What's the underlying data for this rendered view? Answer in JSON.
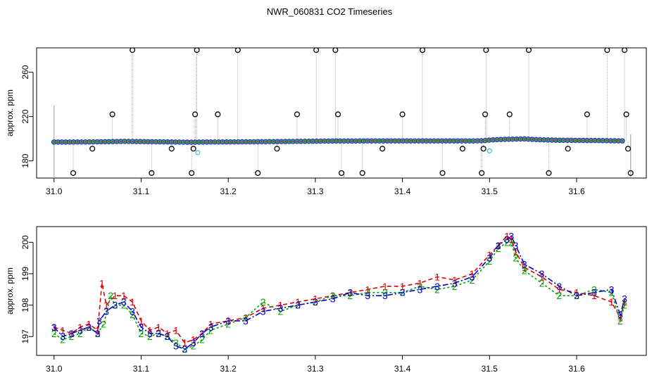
{
  "title": "NWR_060831  CO2 Timeseries",
  "chart_data": [
    {
      "type": "scatter",
      "ylabel": "approx. ppm",
      "xlim": [
        30.98,
        31.68
      ],
      "ylim": [
        164.5,
        282
      ],
      "x_ticks": [
        31.0,
        31.1,
        31.2,
        31.3,
        31.4,
        31.5,
        31.6
      ],
      "x_tick_labels": [
        "31.0",
        "31.1",
        "31.2",
        "31.3",
        "31.4",
        "31.5",
        "31.6"
      ],
      "y_ticks": [
        180,
        220,
        260
      ],
      "y_tick_labels": [
        "180",
        "220",
        "260"
      ],
      "baseline": {
        "x": [
          31.0,
          31.02,
          31.04,
          31.06,
          31.08,
          31.1,
          31.12,
          31.14,
          31.158,
          31.17,
          31.2,
          31.24,
          31.28,
          31.32,
          31.325,
          31.332,
          31.36,
          31.4,
          31.44,
          31.48,
          31.494,
          31.5,
          31.52,
          31.54,
          31.56,
          31.58,
          31.62,
          31.655
        ],
        "y": [
          197,
          197,
          197.1,
          197.3,
          197.6,
          197.4,
          197.2,
          197,
          196.8,
          197,
          197.1,
          197.3,
          197.6,
          197.9,
          198,
          197.9,
          198,
          198,
          198,
          198,
          198.2,
          198.8,
          199.5,
          199.8,
          199,
          198.6,
          198.4,
          198
        ]
      },
      "spikes": {
        "x": [
          31.022,
          31.044,
          31.067,
          31.09,
          31.112,
          31.135,
          31.158,
          31.16,
          31.162,
          31.164,
          31.188,
          31.211,
          31.234,
          31.256,
          31.279,
          31.301,
          31.323,
          31.326,
          31.33,
          31.354,
          31.377,
          31.4,
          31.423,
          31.446,
          31.469,
          31.491,
          31.493,
          31.495,
          31.496,
          31.523,
          31.545,
          31.568,
          31.59,
          31.612,
          31.635,
          31.655,
          31.657,
          31.659,
          31.662
        ],
        "y": [
          169,
          191,
          222,
          280,
          169,
          191,
          169,
          191,
          222,
          280,
          222,
          280,
          169,
          191,
          222,
          280,
          280,
          222,
          169,
          169,
          191,
          222,
          280,
          169,
          191,
          169,
          191,
          222,
          280,
          222,
          280,
          169,
          191,
          222,
          280,
          280,
          222,
          191,
          169
        ]
      },
      "cyan_points": {
        "x": [
          31.165,
          31.5
        ],
        "y": [
          187.5,
          189
        ]
      }
    },
    {
      "type": "line",
      "ylabel": "approx. ppm",
      "xlim": [
        30.98,
        31.68
      ],
      "ylim": [
        196.4,
        200.5
      ],
      "x_ticks": [
        31.0,
        31.1,
        31.2,
        31.3,
        31.4,
        31.5,
        31.6
      ],
      "x_tick_labels": [
        "31.0",
        "31.1",
        "31.2",
        "31.3",
        "31.4",
        "31.5",
        "31.6"
      ],
      "y_ticks": [
        197,
        198,
        199,
        200
      ],
      "y_tick_labels": [
        "197",
        "198",
        "199",
        "200"
      ],
      "series": [
        {
          "name": "1",
          "color": "#dd0000",
          "x": [
            31.0,
            31.01,
            31.02,
            31.03,
            31.04,
            31.05,
            31.055,
            31.06,
            31.07,
            31.08,
            31.09,
            31.1,
            31.11,
            31.12,
            31.13,
            31.14,
            31.15,
            31.16,
            31.17,
            31.18,
            31.2,
            31.22,
            31.24,
            31.26,
            31.28,
            31.3,
            31.32,
            31.34,
            31.36,
            31.38,
            31.4,
            31.42,
            31.44,
            31.46,
            31.48,
            31.5,
            31.51,
            31.52,
            31.525,
            31.53,
            31.54,
            31.56,
            31.58,
            31.6,
            31.62,
            31.64,
            31.65,
            31.655
          ],
          "y": [
            197.3,
            197.2,
            197.1,
            197.3,
            197.4,
            197.2,
            198.7,
            198.0,
            198.3,
            198.3,
            198.1,
            197.5,
            197.2,
            197.3,
            197.1,
            197.2,
            196.8,
            196.9,
            197.1,
            197.4,
            197.5,
            197.6,
            197.9,
            198.0,
            198.1,
            198.2,
            198.3,
            198.4,
            198.5,
            198.6,
            198.6,
            198.7,
            198.9,
            198.8,
            199.0,
            199.6,
            199.9,
            200.2,
            200.1,
            199.7,
            199.2,
            198.9,
            198.5,
            198.4,
            198.3,
            198.1,
            197.6,
            198.1
          ]
        },
        {
          "name": "2",
          "color": "#00a000",
          "x": [
            31.0,
            31.01,
            31.02,
            31.03,
            31.04,
            31.05,
            31.057,
            31.065,
            31.07,
            31.08,
            31.09,
            31.1,
            31.11,
            31.12,
            31.13,
            31.14,
            31.15,
            31.16,
            31.17,
            31.18,
            31.2,
            31.22,
            31.24,
            31.26,
            31.28,
            31.3,
            31.32,
            31.34,
            31.36,
            31.38,
            31.4,
            31.42,
            31.44,
            31.46,
            31.48,
            31.5,
            31.51,
            31.52,
            31.525,
            31.53,
            31.54,
            31.56,
            31.58,
            31.6,
            31.62,
            31.64,
            31.65,
            31.655
          ],
          "y": [
            197.1,
            196.9,
            197.0,
            197.1,
            197.3,
            197.1,
            197.4,
            198.3,
            198.0,
            198.0,
            197.7,
            197.1,
            197.0,
            197.1,
            197.0,
            196.8,
            196.6,
            196.7,
            196.9,
            197.2,
            197.4,
            197.6,
            198.1,
            197.8,
            198.0,
            198.1,
            198.3,
            198.3,
            198.4,
            198.4,
            198.4,
            198.6,
            198.5,
            198.6,
            198.8,
            199.4,
            199.8,
            200.0,
            200.0,
            199.5,
            199.1,
            198.7,
            198.3,
            198.3,
            198.5,
            198.4,
            197.5,
            198.0
          ]
        },
        {
          "name": "3",
          "color": "#0000cc",
          "x": [
            31.0,
            31.01,
            31.02,
            31.03,
            31.04,
            31.05,
            31.052,
            31.06,
            31.07,
            31.08,
            31.09,
            31.1,
            31.11,
            31.12,
            31.13,
            31.14,
            31.15,
            31.16,
            31.17,
            31.18,
            31.2,
            31.22,
            31.24,
            31.26,
            31.28,
            31.3,
            31.32,
            31.34,
            31.36,
            31.38,
            31.4,
            31.42,
            31.44,
            31.46,
            31.48,
            31.5,
            31.51,
            31.52,
            31.525,
            31.53,
            31.54,
            31.56,
            31.58,
            31.6,
            31.62,
            31.64,
            31.65,
            31.655
          ],
          "y": [
            197.3,
            197.0,
            197.1,
            197.2,
            197.3,
            197.1,
            197.5,
            197.8,
            198.0,
            198.1,
            197.8,
            197.3,
            197.1,
            197.1,
            197.0,
            196.7,
            196.6,
            196.8,
            197.1,
            197.3,
            197.5,
            197.5,
            197.8,
            197.9,
            198.0,
            198.1,
            198.2,
            198.4,
            198.3,
            198.3,
            198.4,
            198.5,
            198.6,
            198.7,
            198.9,
            199.5,
            199.9,
            200.1,
            200.2,
            199.9,
            199.3,
            199.0,
            198.6,
            198.3,
            198.4,
            198.5,
            197.7,
            198.2
          ]
        }
      ]
    }
  ]
}
